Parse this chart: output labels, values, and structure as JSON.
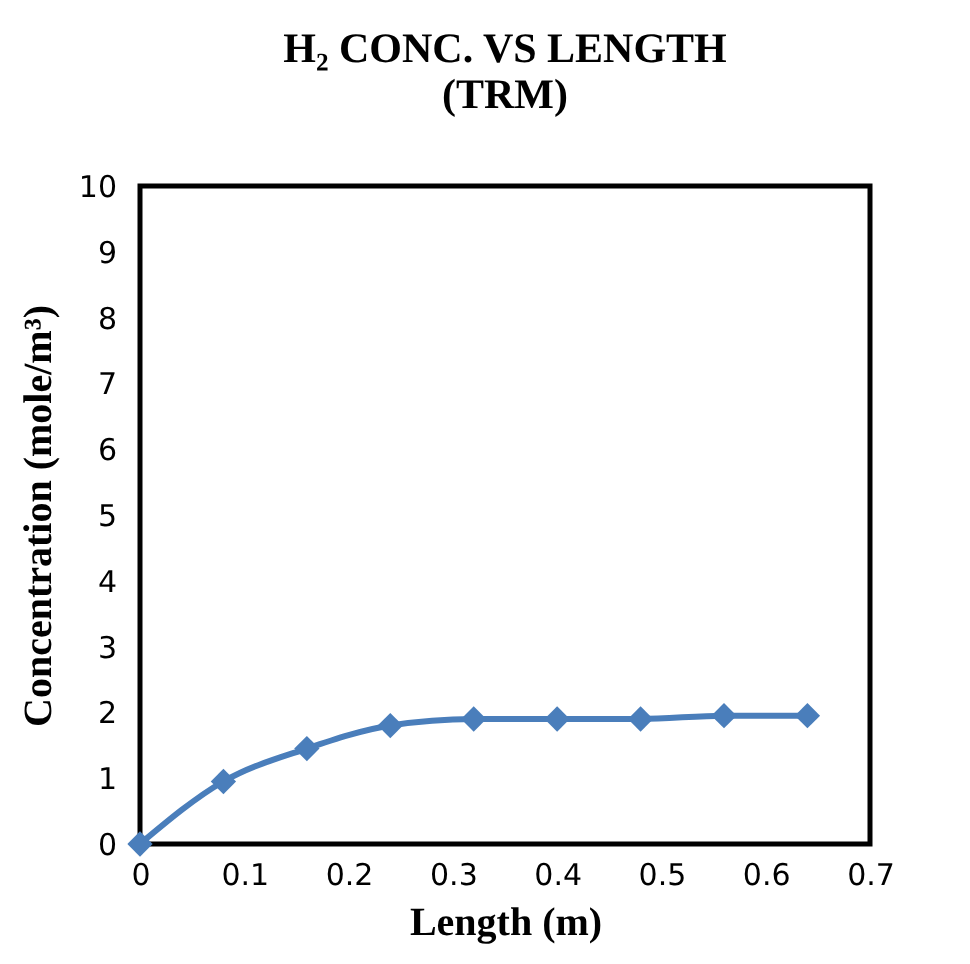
{
  "chart_data": {
    "type": "line",
    "title": "H₂ CONC. VS LENGTH (TRM)",
    "xlabel": "Length (m)",
    "ylabel": "Concentration (mole/m³)",
    "x": [
      0,
      0.08,
      0.16,
      0.24,
      0.32,
      0.4,
      0.48,
      0.56,
      0.64
    ],
    "series": [
      {
        "color": "#4a7ebb",
        "values": [
          0,
          0.95,
          1.45,
          1.8,
          1.9,
          1.9,
          1.9,
          1.95,
          1.95
        ]
      }
    ],
    "xlim": [
      0,
      0.7
    ],
    "xticks": [
      0,
      0.1,
      0.2,
      0.3,
      0.4,
      0.5,
      0.6,
      0.7
    ],
    "ylim": [
      0,
      10
    ],
    "yticks": [
      0,
      1,
      2,
      3,
      4,
      5,
      6,
      7,
      8,
      9,
      10
    ],
    "grid": false,
    "marker": "diamond",
    "line_style": "solid"
  }
}
